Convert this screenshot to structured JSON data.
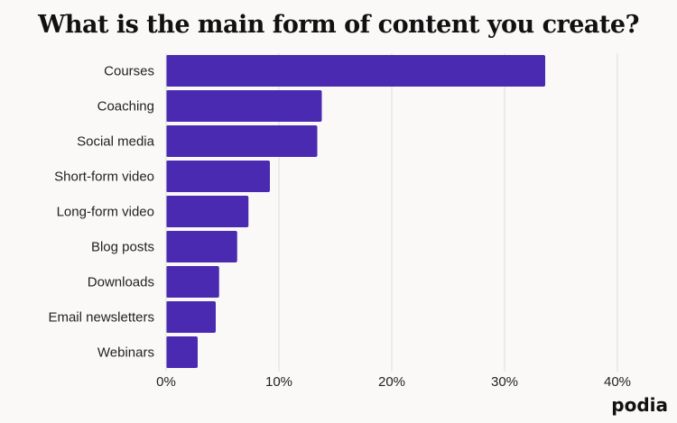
{
  "colors": {
    "bar": "#4a2ab0",
    "grid": "#dcdcdc",
    "text": "#222222",
    "background": "#fbf9f8"
  },
  "brand": "podia",
  "chart_data": {
    "type": "bar",
    "orientation": "horizontal",
    "title": "What is the main form of content you create?",
    "xlabel": "",
    "ylabel": "",
    "categories": [
      "Courses",
      "Coaching",
      "Social media",
      "Short-form video",
      "Long-form video",
      "Blog posts",
      "Downloads",
      "Email newsletters",
      "Webinars"
    ],
    "values": [
      33.6,
      13.8,
      13.4,
      9.2,
      7.3,
      6.3,
      4.7,
      4.4,
      2.8
    ],
    "xlim": [
      0,
      40
    ],
    "xticks": [
      "0%",
      "10%",
      "20%",
      "30%",
      "40%"
    ],
    "grid": true,
    "legend": "none"
  }
}
